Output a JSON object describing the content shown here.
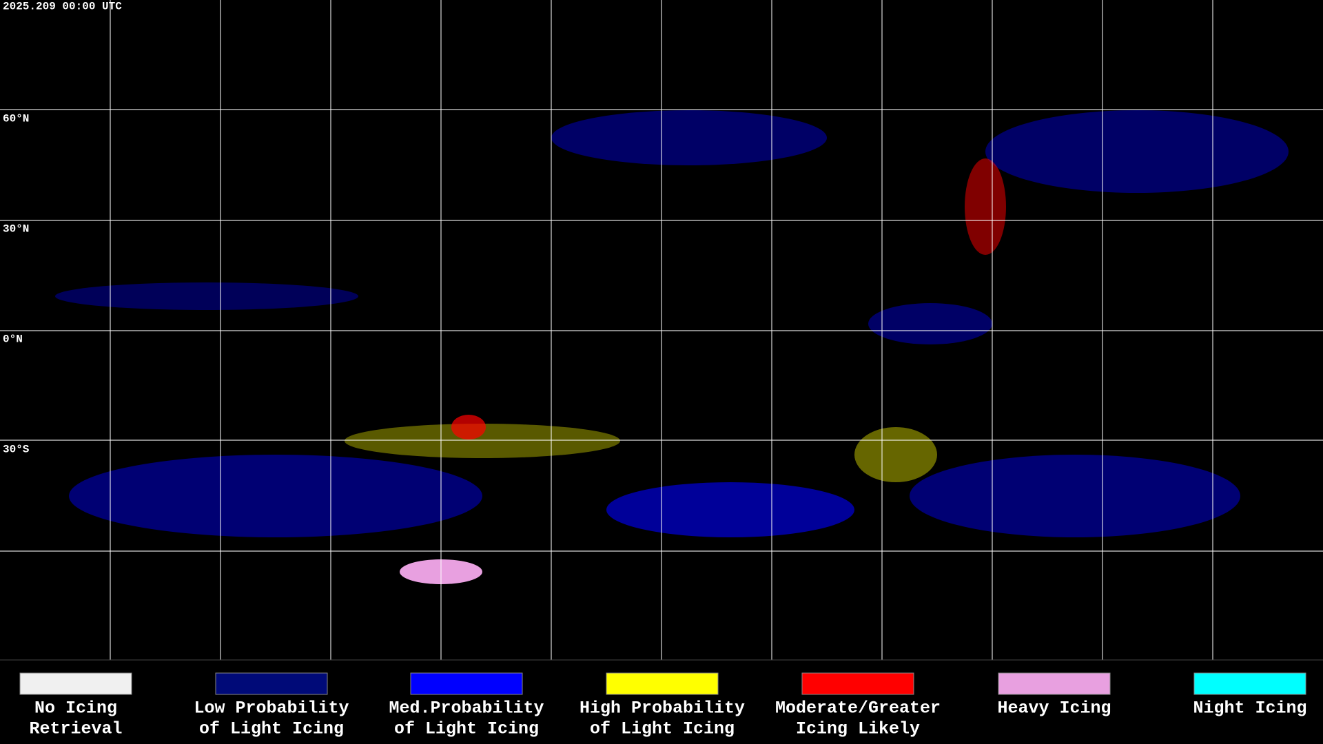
{
  "header": {
    "timestamp": "2025.209 00:00 UTC"
  },
  "map": {
    "latitude_labels": [
      "60°N",
      "30°N",
      "0°N",
      "30°S"
    ]
  },
  "legend": {
    "items": [
      {
        "lines": [
          "No Icing",
          "Retrieval"
        ],
        "color": "#f0f0f0"
      },
      {
        "lines": [
          "Low Probability",
          "of Light Icing"
        ],
        "color": "#000a78"
      },
      {
        "lines": [
          "Med.Probability",
          "of Light Icing"
        ],
        "color": "#0000ff"
      },
      {
        "lines": [
          "High Probability",
          "of Light Icing"
        ],
        "color": "#ffff00"
      },
      {
        "lines": [
          "Moderate/Greater",
          "Icing Likely"
        ],
        "color": "#ff0000"
      },
      {
        "lines": [
          "Heavy Icing"
        ],
        "color": "#e8a0e0"
      },
      {
        "lines": [
          "Night Icing"
        ],
        "color": "#00ffff"
      }
    ]
  }
}
